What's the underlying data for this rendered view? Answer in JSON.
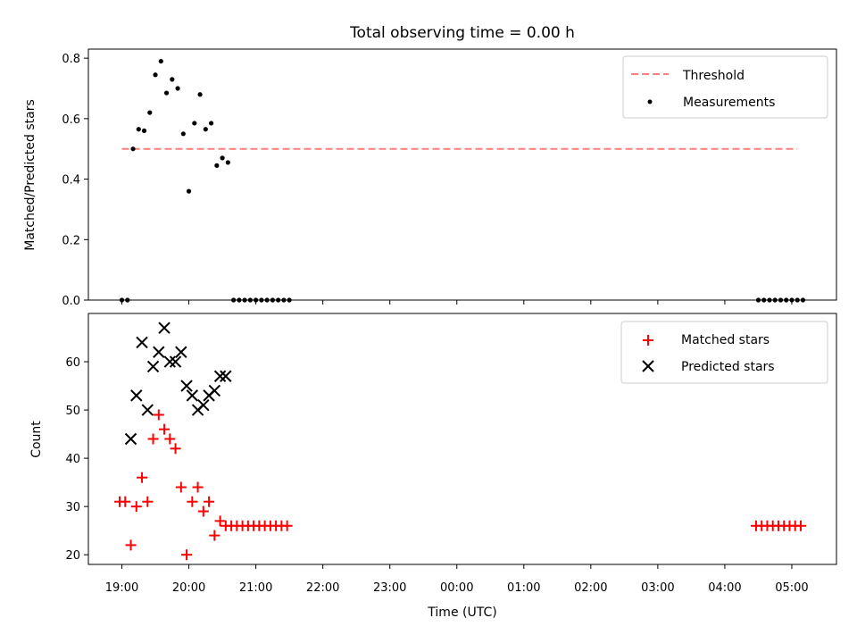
{
  "chart_data": [
    {
      "type": "scatter",
      "title": "Total observing time = 0.00 h",
      "xlabel": "",
      "ylabel": "Matched/Predicted stars",
      "xlim": [
        "18:30",
        "05:40"
      ],
      "ylim": [
        0,
        0.83
      ],
      "yticks": [
        0.0,
        0.2,
        0.4,
        0.6,
        0.8
      ],
      "ytick_labels": [
        "0.0",
        "0.2",
        "0.4",
        "0.6",
        "0.8"
      ],
      "legend_position": "top-right",
      "series": [
        {
          "name": "Threshold",
          "kind": "line",
          "style": "dashed",
          "color": "#ff7f7f",
          "points": [
            [
              "19:00",
              0.5
            ],
            [
              "05:05",
              0.5
            ]
          ]
        },
        {
          "name": "Measurements",
          "kind": "scatter",
          "marker": "dot",
          "color": "#000000",
          "points": [
            [
              "19:00",
              0.0
            ],
            [
              "19:05",
              0.0
            ],
            [
              "19:10",
              0.5
            ],
            [
              "19:15",
              0.565
            ],
            [
              "19:20",
              0.56
            ],
            [
              "19:25",
              0.62
            ],
            [
              "19:30",
              0.745
            ],
            [
              "19:35",
              0.79
            ],
            [
              "19:40",
              0.685
            ],
            [
              "19:45",
              0.73
            ],
            [
              "19:50",
              0.7
            ],
            [
              "19:55",
              0.55
            ],
            [
              "20:00",
              0.36
            ],
            [
              "20:05",
              0.585
            ],
            [
              "20:10",
              0.68
            ],
            [
              "20:15",
              0.565
            ],
            [
              "20:20",
              0.585
            ],
            [
              "20:25",
              0.445
            ],
            [
              "20:30",
              0.47
            ],
            [
              "20:35",
              0.455
            ],
            [
              "20:40",
              0.0
            ],
            [
              "20:45",
              0.0
            ],
            [
              "20:50",
              0.0
            ],
            [
              "20:55",
              0.0
            ],
            [
              "21:00",
              0.0
            ],
            [
              "21:05",
              0.0
            ],
            [
              "21:10",
              0.0
            ],
            [
              "21:15",
              0.0
            ],
            [
              "21:20",
              0.0
            ],
            [
              "21:25",
              0.0
            ],
            [
              "21:30",
              0.0
            ],
            [
              "04:30",
              0.0
            ],
            [
              "04:35",
              0.0
            ],
            [
              "04:40",
              0.0
            ],
            [
              "04:45",
              0.0
            ],
            [
              "04:50",
              0.0
            ],
            [
              "04:55",
              0.0
            ],
            [
              "05:00",
              0.0
            ],
            [
              "05:05",
              0.0
            ],
            [
              "05:10",
              0.0
            ]
          ]
        }
      ]
    },
    {
      "type": "scatter",
      "title": "",
      "xlabel": "Time (UTC)",
      "ylabel": "Count",
      "xlim": [
        "18:30",
        "05:40"
      ],
      "ylim": [
        18,
        70
      ],
      "yticks": [
        20,
        30,
        40,
        50,
        60
      ],
      "ytick_labels": [
        "20",
        "30",
        "40",
        "50",
        "60"
      ],
      "xticks": [
        "19:00",
        "20:00",
        "21:00",
        "22:00",
        "23:00",
        "00:00",
        "01:00",
        "02:00",
        "03:00",
        "04:00",
        "05:00"
      ],
      "legend_position": "top-right",
      "series": [
        {
          "name": "Matched stars",
          "kind": "scatter",
          "marker": "plus",
          "color": "#ff0000",
          "points": [
            [
              "18:58",
              31
            ],
            [
              "19:03",
              31
            ],
            [
              "19:08",
              22
            ],
            [
              "19:13",
              30
            ],
            [
              "19:18",
              36
            ],
            [
              "19:23",
              31
            ],
            [
              "19:28",
              44
            ],
            [
              "19:33",
              49
            ],
            [
              "19:38",
              46
            ],
            [
              "19:43",
              44
            ],
            [
              "19:48",
              42
            ],
            [
              "19:53",
              34
            ],
            [
              "19:58",
              20
            ],
            [
              "20:03",
              31
            ],
            [
              "20:08",
              34
            ],
            [
              "20:13",
              29
            ],
            [
              "20:18",
              31
            ],
            [
              "20:23",
              24
            ],
            [
              "20:28",
              27
            ],
            [
              "20:33",
              26
            ],
            [
              "20:38",
              26
            ],
            [
              "20:43",
              26
            ],
            [
              "20:48",
              26
            ],
            [
              "20:53",
              26
            ],
            [
              "20:58",
              26
            ],
            [
              "21:03",
              26
            ],
            [
              "21:08",
              26
            ],
            [
              "21:13",
              26
            ],
            [
              "21:18",
              26
            ],
            [
              "21:23",
              26
            ],
            [
              "21:28",
              26
            ],
            [
              "04:28",
              26
            ],
            [
              "04:33",
              26
            ],
            [
              "04:38",
              26
            ],
            [
              "04:43",
              26
            ],
            [
              "04:48",
              26
            ],
            [
              "04:53",
              26
            ],
            [
              "04:58",
              26
            ],
            [
              "05:03",
              26
            ],
            [
              "05:08",
              26
            ]
          ]
        },
        {
          "name": "Predicted stars",
          "kind": "scatter",
          "marker": "x",
          "color": "#000000",
          "points": [
            [
              "19:08",
              44
            ],
            [
              "19:13",
              53
            ],
            [
              "19:18",
              64
            ],
            [
              "19:23",
              50
            ],
            [
              "19:28",
              59
            ],
            [
              "19:33",
              62
            ],
            [
              "19:38",
              67
            ],
            [
              "19:43",
              60
            ],
            [
              "19:48",
              60
            ],
            [
              "19:53",
              62
            ],
            [
              "19:58",
              55
            ],
            [
              "20:03",
              53
            ],
            [
              "20:08",
              50
            ],
            [
              "20:13",
              51
            ],
            [
              "20:18",
              53
            ],
            [
              "20:23",
              54
            ],
            [
              "20:28",
              57
            ],
            [
              "20:33",
              57
            ]
          ]
        }
      ]
    }
  ]
}
